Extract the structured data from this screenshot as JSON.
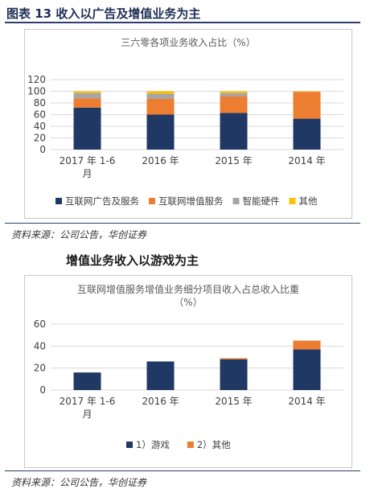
{
  "page": {
    "figure_title": "图表 13 收入以广告及增值业务为主",
    "source_1": "资料来源：公司公告，华创证券",
    "section_heading": "增值业务收入以游戏为主",
    "source_2": "资料来源：公司公告，华创证券"
  },
  "colors": {
    "navy": "#203864",
    "orange": "#ED7D31",
    "gray": "#A5A5A5",
    "yellow": "#FFC000",
    "rule": "#2c3e6b"
  },
  "chart_data": [
    {
      "type": "bar",
      "stacked": true,
      "title": "三六零各项业务收入占比（%）",
      "categories": [
        "2017 年 1-6 月",
        "2016 年",
        "2015 年",
        "2014 年"
      ],
      "category_lines": [
        [
          "2017 年 1-6",
          "月"
        ],
        [
          "2016 年"
        ],
        [
          "2015 年"
        ],
        [
          "2014 年"
        ]
      ],
      "ylim": [
        0,
        120
      ],
      "yticks": [
        0,
        20,
        40,
        60,
        80,
        100,
        120
      ],
      "grid": true,
      "legend_position": "bottom",
      "series": [
        {
          "name": "互联网广告及服务",
          "color": "#203864",
          "values": [
            72,
            60,
            63,
            53
          ]
        },
        {
          "name": "互联网增值服务",
          "color": "#ED7D31",
          "values": [
            16,
            27,
            28,
            46
          ]
        },
        {
          "name": "智能硬件",
          "color": "#A5A5A5",
          "values": [
            9,
            9,
            6,
            0
          ]
        },
        {
          "name": "其他",
          "color": "#FFC000",
          "values": [
            3,
            4,
            3,
            1
          ]
        }
      ]
    },
    {
      "type": "bar",
      "stacked": true,
      "title": "互联网增值服务增值业务细分项目收入占总收入比重（%）",
      "title_lines": [
        "互联网增值服务增值业务细分项目收入占总收入比重",
        "（%）"
      ],
      "categories": [
        "2017 年 1-6 月",
        "2016 年",
        "2015 年",
        "2014 年"
      ],
      "category_lines": [
        [
          "2017 年 1-6",
          "月"
        ],
        [
          "2016 年"
        ],
        [
          "2015 年"
        ],
        [
          "2014 年"
        ]
      ],
      "ylim": [
        0,
        60
      ],
      "yticks": [
        0,
        20,
        40,
        60
      ],
      "grid": true,
      "legend_position": "bottom",
      "series": [
        {
          "name": "1）游戏",
          "color": "#203864",
          "values": [
            16,
            26,
            28,
            37
          ]
        },
        {
          "name": "2）其他",
          "color": "#ED7D31",
          "values": [
            0,
            0,
            1,
            8
          ]
        }
      ]
    }
  ]
}
